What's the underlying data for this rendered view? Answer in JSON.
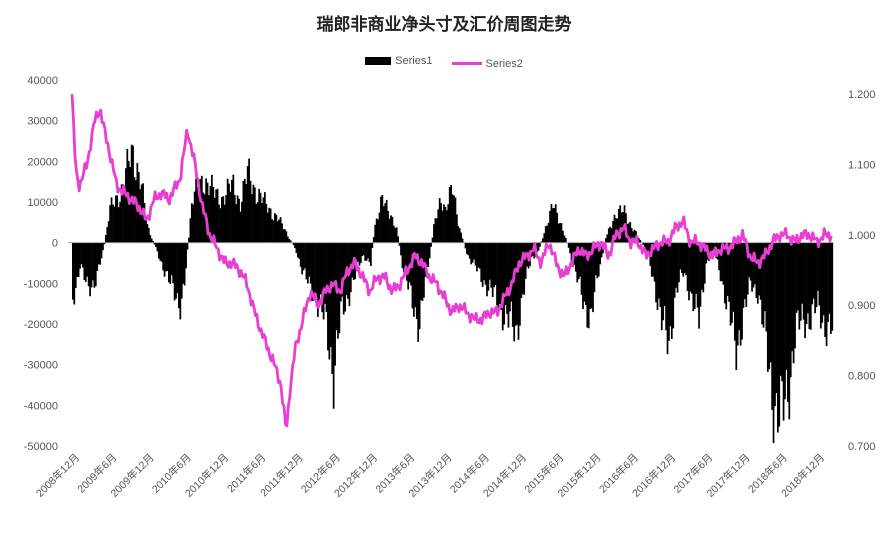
{
  "chart_data": {
    "type": "bar",
    "title": "瑞郎非商业净头寸及汇价周图走势",
    "legend_position": "top",
    "grid": false,
    "series": [
      {
        "name": "Series1",
        "type": "bar",
        "axis": "left",
        "color": "#000000"
      },
      {
        "name": "Series2",
        "type": "line",
        "axis": "right",
        "color": "#e83ed3"
      }
    ],
    "y_left": {
      "ylim": [
        -50000,
        40000
      ],
      "ticks": [
        "40000",
        "30000",
        "20000",
        "10000",
        "0",
        "-10000",
        "-20000",
        "-30000",
        "-40000",
        "-50000"
      ]
    },
    "y_right": {
      "ylim": [
        0.7,
        1.22
      ],
      "ticks": [
        "1.200",
        "1.100",
        "1.000",
        "0.900",
        "0.800",
        "0.700"
      ]
    },
    "x_tick_labels": [
      "2008年12月",
      "2009年6月",
      "2009年12月",
      "2010年6月",
      "2010年12月",
      "2011年6月",
      "2011年12月",
      "2012年6月",
      "2012年12月",
      "2013年6月",
      "2013年12月",
      "2014年6月",
      "2014年12月",
      "2015年6月",
      "2015年12月",
      "2016年6月",
      "2016年12月",
      "2017年6月",
      "2017年12月",
      "2018年6月",
      "2018年12月"
    ],
    "series1_keypoints": [
      [
        0,
        -14000
      ],
      [
        0.2,
        -5000
      ],
      [
        0.4,
        -12000
      ],
      [
        0.6,
        -9000
      ],
      [
        0.8,
        -3000
      ],
      [
        1.0,
        8000
      ],
      [
        1.3,
        13000
      ],
      [
        1.6,
        22000
      ],
      [
        1.8,
        17000
      ],
      [
        2.0,
        4000
      ],
      [
        2.3,
        -3000
      ],
      [
        2.6,
        -10000
      ],
      [
        2.9,
        -15000
      ],
      [
        3.0,
        -10000
      ],
      [
        3.2,
        10000
      ],
      [
        3.5,
        16000
      ],
      [
        3.8,
        12000
      ],
      [
        4.0,
        11000
      ],
      [
        4.3,
        14000
      ],
      [
        4.5,
        10000
      ],
      [
        4.7,
        17000
      ],
      [
        4.9,
        13000
      ],
      [
        5.2,
        9000
      ],
      [
        5.5,
        6000
      ],
      [
        5.7,
        3000
      ],
      [
        6.0,
        -2000
      ],
      [
        6.2,
        -8000
      ],
      [
        6.5,
        -13000
      ],
      [
        6.8,
        -20000
      ],
      [
        7.0,
        -32000
      ],
      [
        7.2,
        -18000
      ],
      [
        7.5,
        -10000
      ],
      [
        7.8,
        -3000
      ],
      [
        8.0,
        -5000
      ],
      [
        8.1,
        4000
      ],
      [
        8.3,
        10000
      ],
      [
        8.5,
        8000
      ],
      [
        8.7,
        3000
      ],
      [
        8.9,
        -8000
      ],
      [
        9.1,
        -14000
      ],
      [
        9.3,
        -20000
      ],
      [
        9.5,
        -8000
      ],
      [
        9.7,
        4000
      ],
      [
        9.9,
        12000
      ],
      [
        10.0,
        8000
      ],
      [
        10.2,
        13000
      ],
      [
        10.4,
        3000
      ],
      [
        10.6,
        -3000
      ],
      [
        10.8,
        -6000
      ],
      [
        11.0,
        -9000
      ],
      [
        11.3,
        -13000
      ],
      [
        11.6,
        -18000
      ],
      [
        11.9,
        -22000
      ],
      [
        12.1,
        -12000
      ],
      [
        12.3,
        -4000
      ],
      [
        12.5,
        -2000
      ],
      [
        12.7,
        4000
      ],
      [
        12.9,
        9000
      ],
      [
        13.1,
        5000
      ],
      [
        13.3,
        -1000
      ],
      [
        13.5,
        -8000
      ],
      [
        13.7,
        -14000
      ],
      [
        13.9,
        -19000
      ],
      [
        14.1,
        -8000
      ],
      [
        14.3,
        1000
      ],
      [
        14.5,
        6000
      ],
      [
        14.8,
        8000
      ],
      [
        15.0,
        4000
      ],
      [
        15.2,
        1000
      ],
      [
        15.4,
        -2000
      ],
      [
        15.6,
        -9000
      ],
      [
        15.8,
        -20000
      ],
      [
        16.0,
        -24000
      ],
      [
        16.2,
        -12000
      ],
      [
        16.4,
        -7000
      ],
      [
        16.6,
        -13000
      ],
      [
        16.8,
        -20000
      ],
      [
        17.0,
        -5000
      ],
      [
        17.2,
        -2000
      ],
      [
        17.4,
        -8000
      ],
      [
        17.6,
        -17000
      ],
      [
        17.8,
        -26000
      ],
      [
        18.0,
        -18000
      ],
      [
        18.2,
        -10000
      ],
      [
        18.4,
        -12000
      ],
      [
        18.6,
        -25000
      ],
      [
        18.8,
        -38000
      ],
      [
        19.0,
        -44000
      ],
      [
        19.2,
        -36000
      ],
      [
        19.4,
        -22000
      ],
      [
        19.6,
        -19000
      ],
      [
        19.8,
        -18000
      ],
      [
        20.0,
        -16000
      ],
      [
        20.2,
        -20000
      ],
      [
        20.4,
        -22000
      ]
    ],
    "series2_keypoints": [
      [
        0,
        1.2
      ],
      [
        0.1,
        1.09
      ],
      [
        0.2,
        1.07
      ],
      [
        0.4,
        1.1
      ],
      [
        0.6,
        1.16
      ],
      [
        0.75,
        1.18
      ],
      [
        0.9,
        1.14
      ],
      [
        1.0,
        1.12
      ],
      [
        1.2,
        1.07
      ],
      [
        1.4,
        1.06
      ],
      [
        1.6,
        1.05
      ],
      [
        1.8,
        1.04
      ],
      [
        2.0,
        1.02
      ],
      [
        2.2,
        1.05
      ],
      [
        2.4,
        1.06
      ],
      [
        2.6,
        1.05
      ],
      [
        2.9,
        1.08
      ],
      [
        3.1,
        1.15
      ],
      [
        3.3,
        1.1
      ],
      [
        3.5,
        1.04
      ],
      [
        3.7,
        1.0
      ],
      [
        3.9,
        0.98
      ],
      [
        4.1,
        0.96
      ],
      [
        4.3,
        0.96
      ],
      [
        4.5,
        0.95
      ],
      [
        4.7,
        0.93
      ],
      [
        4.9,
        0.89
      ],
      [
        5.1,
        0.86
      ],
      [
        5.4,
        0.82
      ],
      [
        5.6,
        0.79
      ],
      [
        5.75,
        0.72
      ],
      [
        5.85,
        0.78
      ],
      [
        6.0,
        0.84
      ],
      [
        6.2,
        0.88
      ],
      [
        6.4,
        0.92
      ],
      [
        6.6,
        0.9
      ],
      [
        6.8,
        0.92
      ],
      [
        7.0,
        0.93
      ],
      [
        7.2,
        0.92
      ],
      [
        7.4,
        0.95
      ],
      [
        7.6,
        0.96
      ],
      [
        7.8,
        0.94
      ],
      [
        8.0,
        0.92
      ],
      [
        8.2,
        0.94
      ],
      [
        8.4,
        0.94
      ],
      [
        8.6,
        0.92
      ],
      [
        8.8,
        0.93
      ],
      [
        9.0,
        0.95
      ],
      [
        9.2,
        0.97
      ],
      [
        9.4,
        0.96
      ],
      [
        9.6,
        0.94
      ],
      [
        9.8,
        0.93
      ],
      [
        10.0,
        0.91
      ],
      [
        10.2,
        0.89
      ],
      [
        10.4,
        0.9
      ],
      [
        10.6,
        0.89
      ],
      [
        10.8,
        0.88
      ],
      [
        11.0,
        0.88
      ],
      [
        11.2,
        0.89
      ],
      [
        11.4,
        0.89
      ],
      [
        11.6,
        0.91
      ],
      [
        11.8,
        0.93
      ],
      [
        12.0,
        0.96
      ],
      [
        12.2,
        0.97
      ],
      [
        12.4,
        0.98
      ],
      [
        12.6,
        0.96
      ],
      [
        12.8,
        0.99
      ],
      [
        13.0,
        0.96
      ],
      [
        13.2,
        0.94
      ],
      [
        13.4,
        0.96
      ],
      [
        13.6,
        0.98
      ],
      [
        13.8,
        0.97
      ],
      [
        14.0,
        0.98
      ],
      [
        14.2,
        0.99
      ],
      [
        14.4,
        0.97
      ],
      [
        14.6,
        1.0
      ],
      [
        14.8,
        1.01
      ],
      [
        15.0,
        0.99
      ],
      [
        15.2,
        0.99
      ],
      [
        15.4,
        0.97
      ],
      [
        15.6,
        0.98
      ],
      [
        15.8,
        0.99
      ],
      [
        16.0,
        0.99
      ],
      [
        16.2,
        1.01
      ],
      [
        16.4,
        1.02
      ],
      [
        16.6,
        0.99
      ],
      [
        16.8,
        0.99
      ],
      [
        17.0,
        0.98
      ],
      [
        17.2,
        0.97
      ],
      [
        17.4,
        0.98
      ],
      [
        17.6,
        0.98
      ],
      [
        17.8,
        0.99
      ],
      [
        18.0,
        1.0
      ],
      [
        18.2,
        0.97
      ],
      [
        18.4,
        0.96
      ],
      [
        18.6,
        0.97
      ],
      [
        18.8,
        0.99
      ],
      [
        19.0,
        1.0
      ],
      [
        19.2,
        1.0
      ],
      [
        19.4,
        0.99
      ],
      [
        19.6,
        1.0
      ],
      [
        19.8,
        1.0
      ],
      [
        20.0,
        0.99
      ],
      [
        20.2,
        1.0
      ],
      [
        20.4,
        1.0
      ]
    ]
  }
}
